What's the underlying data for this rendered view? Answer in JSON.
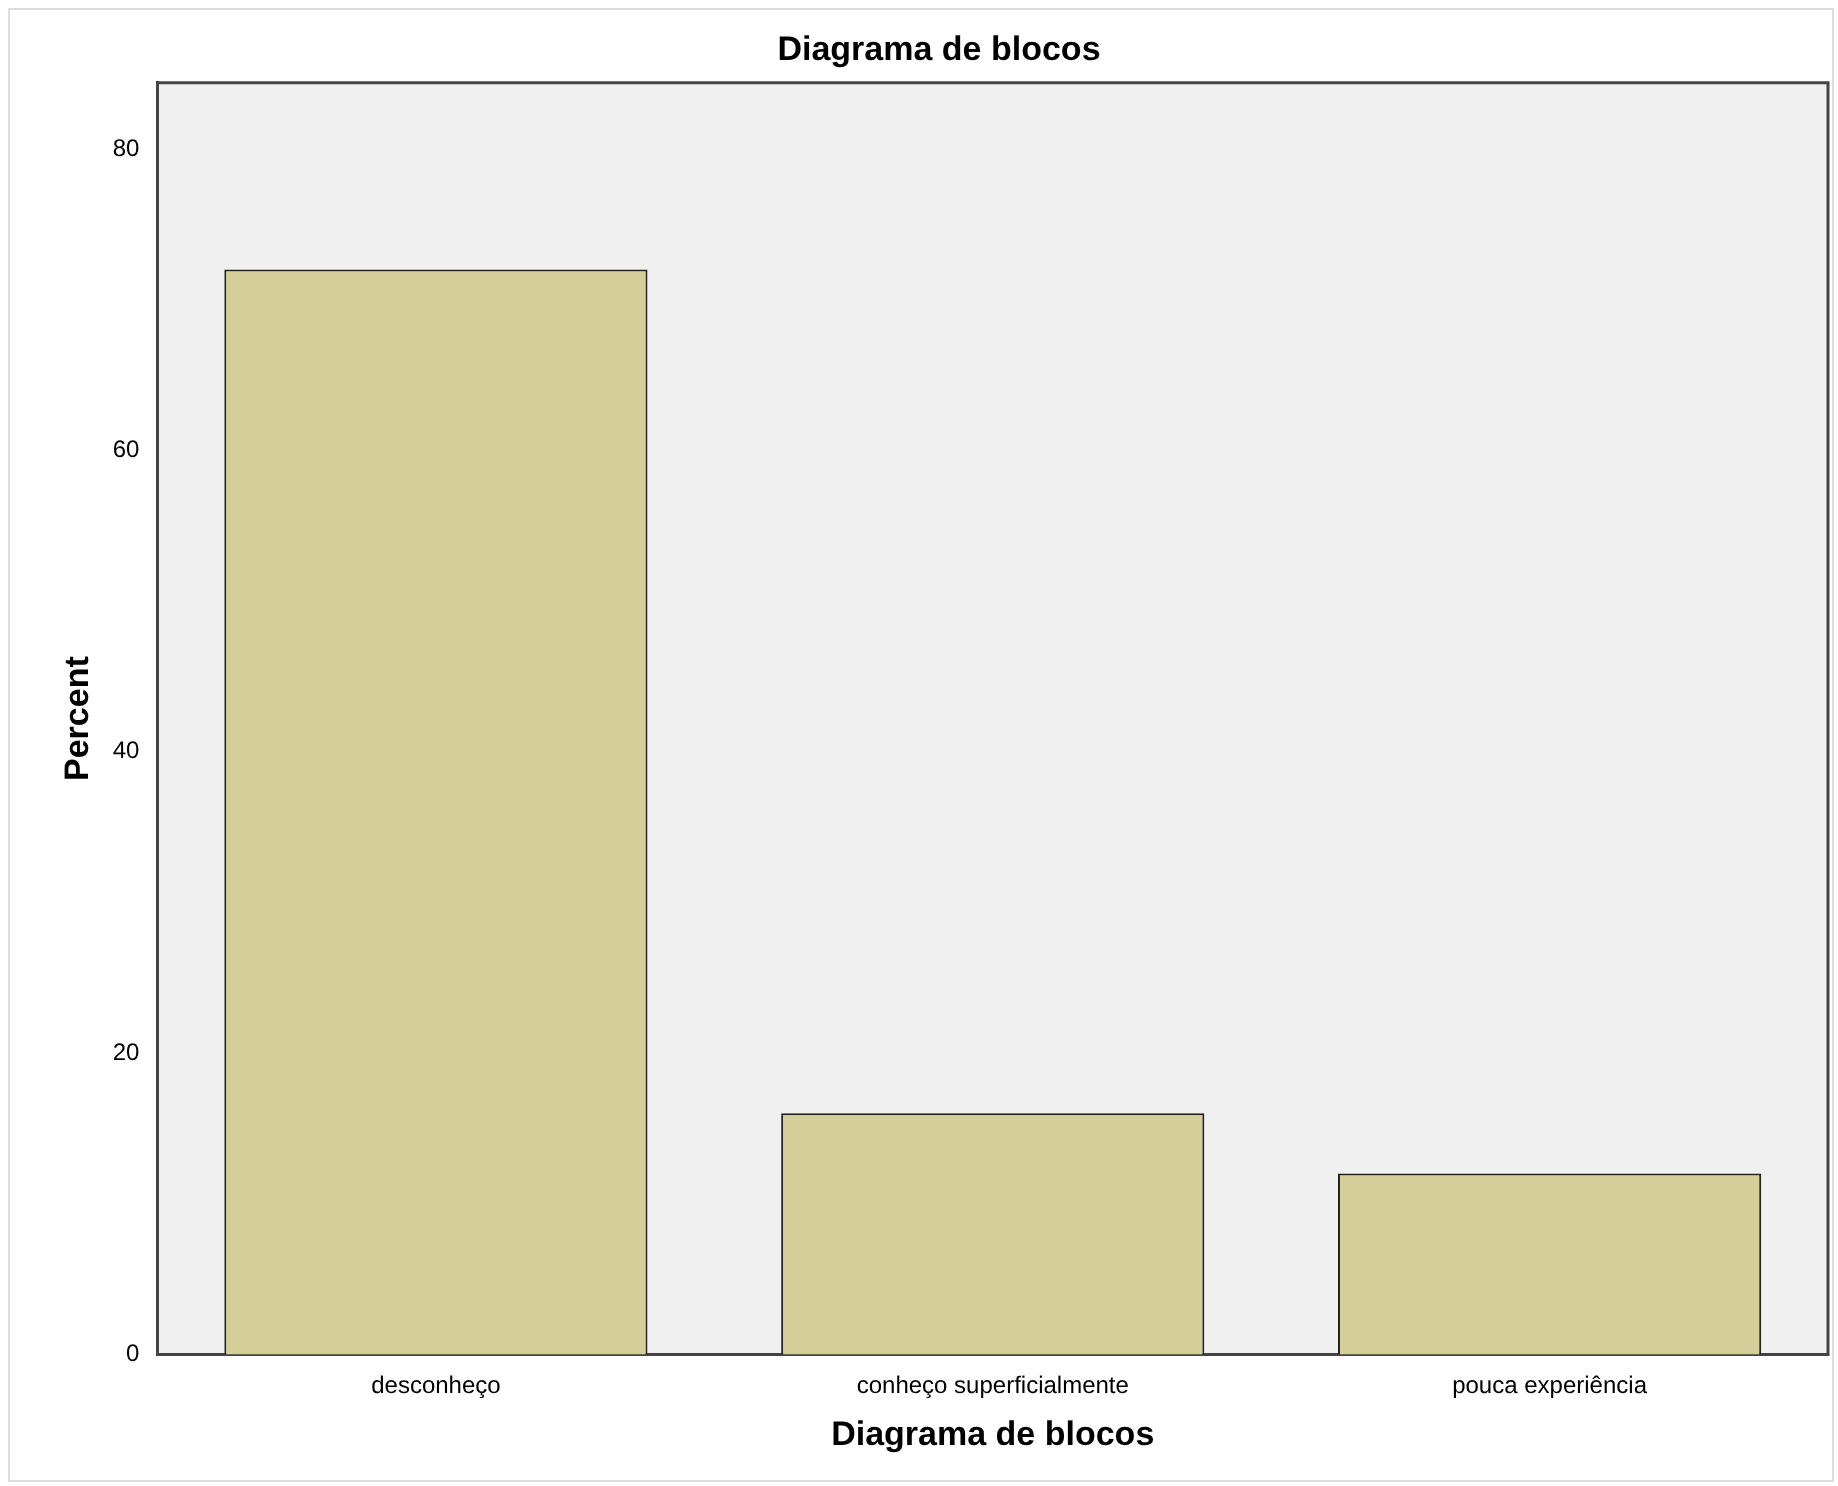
{
  "chart_data": {
    "type": "bar",
    "title": "Diagrama de blocos",
    "xlabel": "Diagrama de blocos",
    "ylabel": "Percent",
    "categories": [
      "desconheço",
      "conheço superficialmente",
      "pouca experiência"
    ],
    "values": [
      72,
      16,
      12
    ],
    "color": "#d4ce99",
    "ylim": [
      0,
      84.4
    ],
    "yticks": [
      0,
      20,
      40,
      60,
      80
    ],
    "grid": false,
    "legend": false
  }
}
